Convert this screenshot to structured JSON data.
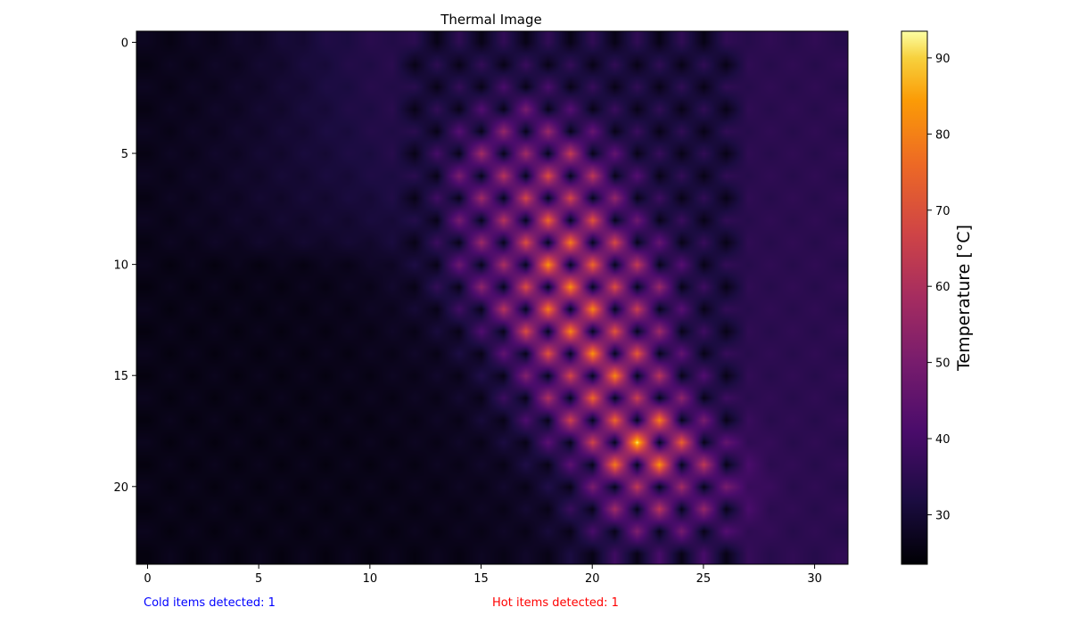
{
  "chart_data": {
    "type": "heatmap",
    "title": "Thermal Image",
    "colormap": "inferno",
    "grid": false,
    "x_ticks": [
      0,
      5,
      10,
      15,
      20,
      25,
      30
    ],
    "y_ticks": [
      0,
      5,
      10,
      15,
      20
    ],
    "xlim": [
      -0.5,
      31.5
    ],
    "ylim": [
      23.5,
      -0.5
    ],
    "columns": 32,
    "rows": 24,
    "colorbar": {
      "label": "Temperature [°C]",
      "min": 23.5,
      "max": 93.5,
      "ticks": [
        30,
        40,
        50,
        60,
        70,
        80,
        90
      ],
      "placement": "right"
    },
    "hot_peaks": [
      {
        "x": 22,
        "y": 18,
        "value": 93
      },
      {
        "x": 23,
        "y": 19,
        "value": 84
      },
      {
        "x": 18,
        "y": 10,
        "value": 84
      },
      {
        "x": 20,
        "y": 14,
        "value": 84
      },
      {
        "x": 19,
        "y": 11,
        "value": 83
      },
      {
        "x": 19,
        "y": 13,
        "value": 82
      },
      {
        "x": 20,
        "y": 12,
        "value": 82
      },
      {
        "x": 21,
        "y": 15,
        "value": 82
      },
      {
        "x": 19,
        "y": 9,
        "value": 80
      },
      {
        "x": 18,
        "y": 12,
        "value": 80
      },
      {
        "x": 18,
        "y": 8,
        "value": 76
      },
      {
        "x": 20,
        "y": 10,
        "value": 76
      },
      {
        "x": 20,
        "y": 16,
        "value": 76
      },
      {
        "x": 21,
        "y": 17,
        "value": 76
      },
      {
        "x": 18,
        "y": 6,
        "value": 70
      },
      {
        "x": 21,
        "y": 11,
        "value": 70
      },
      {
        "x": 21,
        "y": 13,
        "value": 72
      },
      {
        "x": 17,
        "y": 11,
        "value": 70
      },
      {
        "x": 17,
        "y": 7,
        "value": 68
      },
      {
        "x": 17,
        "y": 9,
        "value": 70
      },
      {
        "x": 19,
        "y": 7,
        "value": 68
      },
      {
        "x": 19,
        "y": 15,
        "value": 68
      },
      {
        "x": 16,
        "y": 6,
        "value": 62
      },
      {
        "x": 16,
        "y": 8,
        "value": 62
      },
      {
        "x": 16,
        "y": 10,
        "value": 60
      },
      {
        "x": 17,
        "y": 5,
        "value": 58
      },
      {
        "x": 22,
        "y": 16,
        "value": 66
      },
      {
        "x": 22,
        "y": 20,
        "value": 64
      },
      {
        "x": 24,
        "y": 20,
        "value": 58
      }
    ]
  },
  "status": {
    "cold": "Cold items detected: 1",
    "hot": "Hot items detected: 1"
  },
  "colors": {
    "cold_text": "#0000ff",
    "hot_text": "#ff0000"
  }
}
